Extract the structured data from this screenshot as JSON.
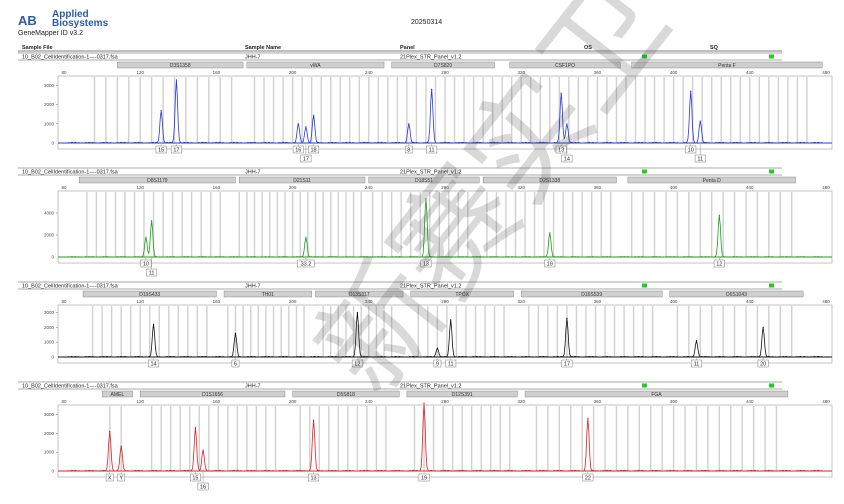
{
  "header": {
    "brand_line1": "Applied",
    "brand_line2": "Biosystems",
    "product": "GeneMapper ID v3.2",
    "date": "20250314",
    "columns": [
      "Sample File",
      "Sample Name",
      "Panel",
      "OS",
      "SQ"
    ]
  },
  "watermark": "新赛实卫",
  "colors": {
    "blue": "#2838d8",
    "green": "#1c9e1c",
    "black": "#111111",
    "red": "#e02020",
    "status_ok": "#22cc22",
    "allele_box": "#7a7a7a",
    "bin": "#c8c8c8"
  },
  "chart_data": [
    {
      "type": "line",
      "dye": "blue",
      "sample_file": "10_B02_CellIdentification-1----0317.fsa",
      "sample_name": "JHH-7",
      "panel": "21Plex_STR_Panel_v1.2",
      "xlim": [
        80,
        480
      ],
      "ylim": [
        0,
        3500
      ],
      "xticks": [
        80,
        120,
        160,
        200,
        240,
        280,
        320,
        360,
        400,
        440,
        480
      ],
      "yticks": [
        1000,
        2000,
        3000
      ],
      "loci": [
        {
          "name": "D3S1358",
          "start": 108,
          "end": 174
        },
        {
          "name": "vWA",
          "start": 176,
          "end": 248
        },
        {
          "name": "D7S820",
          "start": 252,
          "end": 306
        },
        {
          "name": "CSF1PO",
          "start": 314,
          "end": 372
        },
        {
          "name": "Penta F",
          "start": 378,
          "end": 478
        }
      ],
      "peaks": [
        {
          "x": 131,
          "y": 1700
        },
        {
          "x": 139,
          "y": 3300
        },
        {
          "x": 203,
          "y": 1000
        },
        {
          "x": 207,
          "y": 850
        },
        {
          "x": 211,
          "y": 1450
        },
        {
          "x": 261,
          "y": 1000
        },
        {
          "x": 273,
          "y": 2800
        },
        {
          "x": 341,
          "y": 2600
        },
        {
          "x": 344,
          "y": 1000
        },
        {
          "x": 409,
          "y": 2700
        },
        {
          "x": 414,
          "y": 1150
        }
      ],
      "bins": [
        96,
        102,
        108,
        114,
        120,
        126,
        132,
        138,
        144,
        150,
        156,
        162,
        168,
        180,
        185,
        190,
        195,
        200,
        205,
        210,
        215,
        220,
        225,
        230,
        235,
        240,
        245,
        250,
        255,
        260,
        265,
        270,
        275,
        280,
        285,
        290,
        295,
        300,
        305,
        310,
        315,
        320,
        325,
        330,
        335,
        340,
        345,
        350,
        355,
        360,
        365,
        370,
        375,
        380,
        385,
        390,
        395,
        400,
        405,
        410,
        415,
        420,
        425,
        430,
        435,
        440,
        445,
        450,
        455,
        460,
        465,
        470
      ],
      "alleles": [
        {
          "label": "15",
          "x": 131,
          "row": 0
        },
        {
          "label": "17",
          "x": 139,
          "row": 0
        },
        {
          "label": "16",
          "x": 203,
          "row": 0
        },
        {
          "label": "17",
          "x": 207,
          "row": 1
        },
        {
          "label": "18",
          "x": 211,
          "row": 0
        },
        {
          "label": "8",
          "x": 261,
          "row": 0
        },
        {
          "label": "11",
          "x": 273,
          "row": 0
        },
        {
          "label": "13",
          "x": 341,
          "row": 0
        },
        {
          "label": "14",
          "x": 344,
          "row": 1
        },
        {
          "label": "10",
          "x": 409,
          "row": 0
        },
        {
          "label": "11",
          "x": 414,
          "row": 1
        }
      ]
    },
    {
      "type": "line",
      "dye": "green",
      "sample_file": "10_B02_CellIdentification-1----0317.fsa",
      "sample_name": "JHH-7",
      "panel": "21Plex_STR_Panel_v1.2",
      "xlim": [
        80,
        480
      ],
      "ylim": [
        0,
        6000
      ],
      "xticks": [
        80,
        120,
        160,
        200,
        240,
        280,
        320,
        360,
        400,
        440,
        480
      ],
      "yticks": [
        2000,
        4000
      ],
      "loci": [
        {
          "name": "D8S1179",
          "start": 88,
          "end": 170
        },
        {
          "name": "D21S11",
          "start": 172,
          "end": 238
        },
        {
          "name": "D18S51",
          "start": 240,
          "end": 298
        },
        {
          "name": "D2S1338",
          "start": 300,
          "end": 370
        },
        {
          "name": "Penta D",
          "start": 376,
          "end": 464
        }
      ],
      "peaks": [
        {
          "x": 123,
          "y": 1800
        },
        {
          "x": 126,
          "y": 3300
        },
        {
          "x": 207,
          "y": 1800
        },
        {
          "x": 270,
          "y": 5300
        },
        {
          "x": 335,
          "y": 2200
        },
        {
          "x": 424,
          "y": 3800
        }
      ],
      "bins": [
        92,
        97,
        102,
        107,
        112,
        117,
        122,
        127,
        132,
        137,
        142,
        147,
        152,
        157,
        162,
        172,
        176,
        180,
        184,
        188,
        192,
        196,
        200,
        204,
        208,
        212,
        216,
        220,
        224,
        228,
        232,
        236,
        242,
        247,
        252,
        257,
        262,
        267,
        272,
        277,
        282,
        287,
        292,
        302,
        307,
        312,
        317,
        322,
        327,
        332,
        337,
        342,
        347,
        352,
        357,
        362,
        367,
        378,
        384,
        390,
        396,
        402,
        408,
        414,
        420,
        426,
        432,
        438,
        444,
        450,
        456,
        462
      ],
      "alleles": [
        {
          "label": "10",
          "x": 123,
          "row": 0
        },
        {
          "label": "11",
          "x": 126,
          "row": 1
        },
        {
          "label": "33.2",
          "x": 207,
          "row": 0
        },
        {
          "label": "13",
          "x": 270,
          "row": 0
        },
        {
          "label": "19",
          "x": 335,
          "row": 0
        },
        {
          "label": "12",
          "x": 424,
          "row": 0
        }
      ]
    },
    {
      "type": "line",
      "dye": "black",
      "sample_file": "10_B02_CellIdentification-1----0317.fsa",
      "sample_name": "JHH-7",
      "panel": "21Plex_STR_Panel_v1.2",
      "xlim": [
        80,
        480
      ],
      "ylim": [
        0,
        3500
      ],
      "xticks": [
        80,
        120,
        160,
        200,
        240,
        280,
        320,
        360,
        400,
        440,
        480
      ],
      "yticks": [
        1000,
        2000,
        3000
      ],
      "loci": [
        {
          "name": "D19S433",
          "start": 90,
          "end": 160
        },
        {
          "name": "TH01",
          "start": 164,
          "end": 210
        },
        {
          "name": "D13S317",
          "start": 212,
          "end": 258
        },
        {
          "name": "TPOX",
          "start": 262,
          "end": 316
        },
        {
          "name": "D16S539",
          "start": 320,
          "end": 394
        },
        {
          "name": "D6S1043",
          "start": 398,
          "end": 468
        }
      ],
      "peaks": [
        {
          "x": 127,
          "y": 2200
        },
        {
          "x": 170,
          "y": 1600
        },
        {
          "x": 234,
          "y": 3000
        },
        {
          "x": 276,
          "y": 600
        },
        {
          "x": 283,
          "y": 2500
        },
        {
          "x": 344,
          "y": 2600
        },
        {
          "x": 412,
          "y": 1100
        },
        {
          "x": 447,
          "y": 2000
        }
      ],
      "bins": [
        95,
        100,
        105,
        110,
        115,
        120,
        125,
        130,
        135,
        140,
        145,
        150,
        155,
        166,
        170,
        174,
        178,
        182,
        186,
        190,
        194,
        198,
        202,
        206,
        216,
        220,
        224,
        228,
        232,
        236,
        240,
        244,
        248,
        252,
        266,
        271,
        276,
        281,
        286,
        291,
        296,
        301,
        306,
        311,
        324,
        329,
        334,
        339,
        344,
        349,
        354,
        359,
        364,
        369,
        374,
        379,
        384,
        389,
        402,
        408,
        414,
        420,
        426,
        432,
        438,
        444,
        450,
        456,
        462
      ],
      "alleles": [
        {
          "label": "14",
          "x": 127,
          "row": 0
        },
        {
          "label": "6",
          "x": 170,
          "row": 0
        },
        {
          "label": "12",
          "x": 234,
          "row": 0
        },
        {
          "label": "9",
          "x": 276,
          "row": 0
        },
        {
          "label": "11",
          "x": 283,
          "row": 0
        },
        {
          "label": "17",
          "x": 344,
          "row": 0
        },
        {
          "label": "11",
          "x": 412,
          "row": 0
        },
        {
          "label": "20",
          "x": 447,
          "row": 0
        }
      ]
    },
    {
      "type": "line",
      "dye": "red",
      "sample_file": "10_B02_CellIdentification-1----0317.fsa",
      "sample_name": "JHH-7",
      "panel": "21Plex_STR_Panel_v1.2",
      "xlim": [
        80,
        480
      ],
      "ylim": [
        0,
        3500
      ],
      "xticks": [
        80,
        120,
        160,
        200,
        240,
        280,
        320,
        360,
        400,
        440,
        480
      ],
      "yticks": [
        1000,
        2000,
        3000
      ],
      "loci": [
        {
          "name": "AMEL",
          "start": 100,
          "end": 116
        },
        {
          "name": "D1S1656",
          "start": 120,
          "end": 196
        },
        {
          "name": "D5S818",
          "start": 200,
          "end": 256
        },
        {
          "name": "D12S391",
          "start": 260,
          "end": 318
        },
        {
          "name": "FGA",
          "start": 322,
          "end": 460
        }
      ],
      "peaks": [
        {
          "x": 104,
          "y": 2100
        },
        {
          "x": 110,
          "y": 1300
        },
        {
          "x": 149,
          "y": 2300
        },
        {
          "x": 153,
          "y": 1100
        },
        {
          "x": 211,
          "y": 2700
        },
        {
          "x": 269,
          "y": 3600
        },
        {
          "x": 355,
          "y": 2800
        }
      ],
      "bins": [
        104,
        110,
        126,
        131,
        136,
        141,
        146,
        151,
        156,
        161,
        166,
        171,
        176,
        181,
        186,
        191,
        204,
        209,
        214,
        219,
        224,
        229,
        234,
        239,
        244,
        249,
        264,
        269,
        274,
        279,
        284,
        289,
        294,
        299,
        304,
        309,
        314,
        328,
        334,
        340,
        346,
        352,
        358,
        364,
        370,
        376,
        382,
        388,
        394,
        400,
        406,
        412,
        418,
        424,
        430,
        436,
        442,
        448,
        454
      ],
      "alleles": [
        {
          "label": "X",
          "x": 104,
          "row": 0
        },
        {
          "label": "Y",
          "x": 110,
          "row": 0
        },
        {
          "label": "15",
          "x": 149,
          "row": 0
        },
        {
          "label": "16",
          "x": 153,
          "row": 1
        },
        {
          "label": "13",
          "x": 211,
          "row": 0
        },
        {
          "label": "19",
          "x": 269,
          "row": 0
        },
        {
          "label": "22",
          "x": 355,
          "row": 0
        }
      ]
    }
  ]
}
